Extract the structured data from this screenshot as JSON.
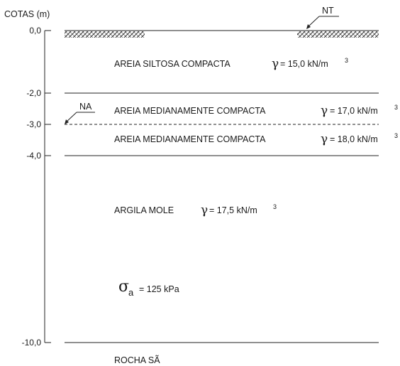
{
  "axis": {
    "title": "COTAS (m)",
    "ticks": [
      "0,0",
      "-2,0",
      "-3,0",
      "-4,0",
      "-10,0"
    ]
  },
  "markers": {
    "ground_level": "NT",
    "water_level": "NA"
  },
  "layers": [
    {
      "name": "AREIA SILTOSA COMPACTA",
      "gamma_label": "γ",
      "gamma_value": "= 15,0 kN/m",
      "unit_exp": "3"
    },
    {
      "name": "AREIA MEDIANAMENTE COMPACTA",
      "gamma_label": "γ",
      "gamma_value": "= 17,0 kN/m",
      "unit_exp": "3"
    },
    {
      "name": "AREIA MEDIANAMENTE COMPACTA",
      "gamma_label": "γ",
      "gamma_value": "= 18,0 kN/m",
      "unit_exp": "3"
    },
    {
      "name": "ARGILA MOLE",
      "gamma_label": "γ",
      "gamma_value": "= 17,5 kN/m",
      "unit_exp": "3"
    }
  ],
  "surcharge": {
    "symbol": "σ",
    "subscript": "a",
    "value": "= 125 kPa"
  },
  "bedrock": "ROCHA SÃ"
}
